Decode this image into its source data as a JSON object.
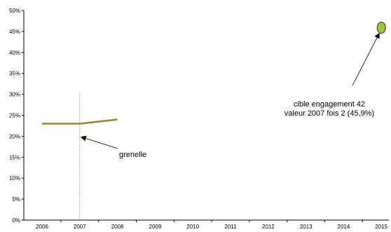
{
  "chart_data": {
    "type": "line",
    "title": "",
    "xlabel": "",
    "ylabel": "",
    "x": [
      "2006",
      "2007",
      "2008",
      "2009",
      "2010",
      "2011",
      "2012",
      "2013",
      "2014",
      "2015"
    ],
    "ylim": [
      0,
      50
    ],
    "y_ticks": [
      "0%",
      "5%",
      "10%",
      "15%",
      "20%",
      "25%",
      "30%",
      "35%",
      "40%",
      "45%",
      "50%"
    ],
    "grid": false,
    "legend": "none",
    "series": [
      {
        "color": "#8b8b3a",
        "values": [
          23,
          23,
          24,
          null,
          null,
          null,
          null,
          null,
          null,
          null
        ]
      }
    ],
    "target_point": {
      "x": "2015",
      "y": 45.9,
      "color": "#9cc83c"
    },
    "reference_line": {
      "x": "2007"
    },
    "annotations": [
      {
        "name": "grenelle",
        "lines": [
          "grenelle"
        ],
        "points_to": {
          "x": "2007",
          "y": 20
        }
      },
      {
        "name": "cible",
        "lines": [
          "cible engagement 42",
          "valeur 2007 fois 2 (45,9%)"
        ],
        "points_to": {
          "x": "2015",
          "y": 45.9
        }
      }
    ]
  }
}
